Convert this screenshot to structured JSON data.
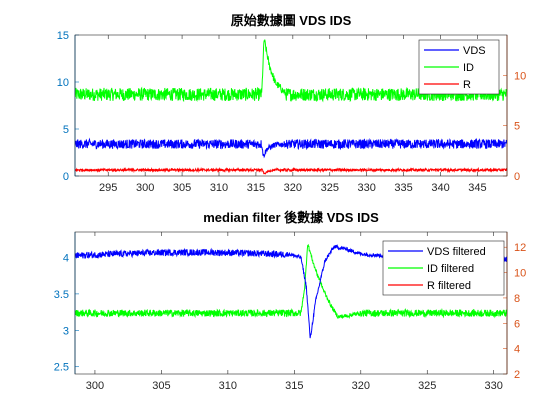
{
  "colors": {
    "left_axis": "#0072BD",
    "right_axis": "#D95319",
    "vds": "#0000FF",
    "id": "#00FF00",
    "r": "#FF0000"
  },
  "chart_data": [
    {
      "type": "line",
      "title": "原始數據圖 VDS IDS",
      "xlabel": "",
      "ylabel_left": "",
      "ylabel_right": "",
      "xlim": [
        290.5,
        349
      ],
      "ylim_left": [
        0,
        15
      ],
      "ylim_right": [
        0,
        14
      ],
      "xticks": [
        295,
        300,
        305,
        310,
        315,
        320,
        325,
        330,
        335,
        340,
        345
      ],
      "yticks_left": [
        0,
        5,
        10,
        15
      ],
      "yticks_right": [
        0,
        5,
        10
      ],
      "legend_position": "top-right",
      "series": [
        {
          "name": "VDS",
          "axis": "left",
          "color": "#0000FF",
          "base": 3.4,
          "band": 1.0,
          "event": [
            [
              315.8,
              3.4
            ],
            [
              316.0,
              2.1
            ],
            [
              316.5,
              2.9
            ],
            [
              317.5,
              3.3
            ],
            [
              319,
              3.4
            ]
          ]
        },
        {
          "name": "ID",
          "axis": "right",
          "color": "#00FF00",
          "base": 8.1,
          "band": 1.3,
          "event": [
            [
              315.8,
              8.3
            ],
            [
              316.1,
              13.6
            ],
            [
              316.8,
              11.0
            ],
            [
              317.6,
              9.3
            ],
            [
              319,
              8.2
            ]
          ]
        },
        {
          "name": "R",
          "axis": "right",
          "color": "#FF0000",
          "base": 0.6,
          "band": 0.25,
          "event": [
            [
              315.9,
              0.6
            ],
            [
              316.1,
              0.2
            ],
            [
              316.6,
              0.45
            ],
            [
              317.5,
              0.6
            ]
          ]
        }
      ]
    },
    {
      "type": "line",
      "title": "median filter 後數據 VDS IDS",
      "xlabel": "",
      "ylabel_left": "",
      "ylabel_right": "",
      "xlim": [
        298.5,
        331
      ],
      "ylim_left": [
        2.4,
        4.35
      ],
      "ylim_right": [
        2,
        13.2
      ],
      "xticks": [
        300,
        305,
        310,
        315,
        320,
        325,
        330
      ],
      "yticks_left": [
        2.5,
        3,
        3.5,
        4
      ],
      "yticks_right": [
        2,
        4,
        6,
        8,
        10,
        12
      ],
      "legend_position": "top-right",
      "series": [
        {
          "name": "VDS filtered",
          "axis": "left",
          "color": "#0000FF",
          "base": 4.02,
          "band": 0.09,
          "event": [
            [
              314.5,
              4.05
            ],
            [
              315.5,
              4.0
            ],
            [
              315.9,
              3.6
            ],
            [
              316.2,
              2.88
            ],
            [
              316.6,
              3.4
            ],
            [
              317.3,
              3.95
            ],
            [
              318.0,
              4.15
            ],
            [
              318.8,
              4.12
            ],
            [
              320,
              4.05
            ],
            [
              322,
              4.02
            ]
          ]
        },
        {
          "name": "ID filtered",
          "axis": "right",
          "color": "#00FF00",
          "base": 6.8,
          "band": 0.55,
          "event": [
            [
              315.5,
              6.8
            ],
            [
              315.8,
              9.0
            ],
            [
              316.0,
              12.3
            ],
            [
              316.5,
              10.5
            ],
            [
              317.2,
              8.6
            ],
            [
              317.8,
              7.3
            ],
            [
              318.3,
              6.5
            ],
            [
              319,
              6.6
            ],
            [
              320,
              6.8
            ]
          ]
        },
        {
          "name": "R filtered",
          "axis": "right",
          "color": "#FF0000",
          "base": 0.5,
          "band": 0.1,
          "event": []
        }
      ]
    }
  ]
}
